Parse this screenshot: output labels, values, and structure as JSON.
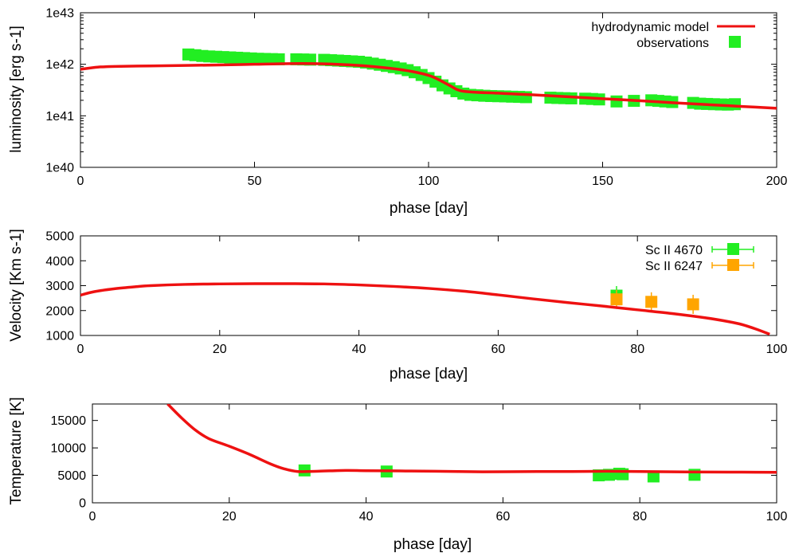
{
  "chart_data": [
    {
      "type": "line",
      "xlabel": "phase [day]",
      "ylabel": "luminosity [erg s-1]",
      "xlim": [
        0,
        200
      ],
      "ylim": [
        1e+40,
        1e+43
      ],
      "y_scale": "log",
      "xticks": [
        0,
        50,
        100,
        150,
        200
      ],
      "xtick_labels": [
        "0",
        "50",
        "100",
        "150",
        "200"
      ],
      "yticks": [
        1e+40,
        1e+41,
        1e+42,
        1e+43
      ],
      "ytick_labels": [
        "1e40",
        "1e41",
        "1e42",
        "1e43"
      ],
      "legend": "top-right",
      "series": [
        {
          "name": "hydrodynamic model",
          "style": "line",
          "color": "#ee1111",
          "x": [
            0,
            5,
            10,
            20,
            30,
            40,
            50,
            60,
            70,
            80,
            85,
            90,
            95,
            100,
            103,
            106,
            110,
            120,
            130,
            140,
            150,
            160,
            170,
            180,
            190,
            200
          ],
          "y": [
            8e+41,
            8.8e+41,
            9.1e+41,
            9.3e+41,
            9.5e+41,
            9.7e+41,
            1e+42,
            1.03e+42,
            1.02e+42,
            9.5e+41,
            8.9e+41,
            8.2e+41,
            7.3e+41,
            6.1e+41,
            5e+41,
            3.9e+41,
            3e+41,
            2.75e+41,
            2.55e+41,
            2.35e+41,
            2.15e+41,
            1.97e+41,
            1.8e+41,
            1.65e+41,
            1.52e+41,
            1.4e+41
          ]
        },
        {
          "name": "observations",
          "style": "marker",
          "color": "#22ee22",
          "x": [
            31,
            33,
            35,
            37,
            39,
            41,
            43,
            45,
            47,
            49,
            51,
            53,
            55,
            57,
            62,
            64,
            66,
            70,
            72,
            74,
            76,
            78,
            80,
            82,
            84,
            86,
            88,
            90,
            92,
            94,
            96,
            98,
            100,
            102,
            104,
            106,
            108,
            110,
            112,
            114,
            116,
            118,
            120,
            122,
            124,
            126,
            128,
            135,
            137,
            139,
            141,
            145,
            147,
            149,
            154,
            159,
            164,
            166,
            168,
            170,
            176,
            178,
            180,
            182,
            184,
            186,
            188
          ],
          "y": [
            1.55e+42,
            1.5e+42,
            1.45e+42,
            1.42e+42,
            1.4e+42,
            1.38e+42,
            1.36e+42,
            1.34e+42,
            1.32e+42,
            1.3e+42,
            1.28e+42,
            1.27e+42,
            1.26e+42,
            1.25e+42,
            1.25e+42,
            1.24e+42,
            1.23e+42,
            1.22e+42,
            1.2e+42,
            1.18e+42,
            1.16e+42,
            1.14e+42,
            1.12e+42,
            1.08e+42,
            1.03e+42,
            9.8e+41,
            9.3e+41,
            8.8e+41,
            8.3e+41,
            7.7e+41,
            7e+41,
            6.2e+41,
            5.4e+41,
            4.6e+41,
            3.9e+41,
            3.4e+41,
            3e+41,
            2.7e+41,
            2.55e+41,
            2.5e+41,
            2.45e+41,
            2.42e+41,
            2.4e+41,
            2.38e+41,
            2.35e+41,
            2.33e+41,
            2.3e+41,
            2.25e+41,
            2.22e+41,
            2.2e+41,
            2.18e+41,
            2.15e+41,
            2.12e+41,
            2.08e+41,
            1.9e+41,
            1.95e+41,
            2e+41,
            1.95e+41,
            1.9e+41,
            1.85e+41,
            1.78e+41,
            1.72e+41,
            1.7e+41,
            1.68e+41,
            1.66e+41,
            1.65e+41,
            1.68e+41
          ]
        }
      ]
    },
    {
      "type": "line",
      "xlabel": "phase [day]",
      "ylabel": "Velocity [Km s-1]",
      "xlim": [
        0,
        100
      ],
      "ylim": [
        1000,
        5000
      ],
      "xticks": [
        0,
        20,
        40,
        60,
        80,
        100
      ],
      "xtick_labels": [
        "0",
        "20",
        "40",
        "60",
        "80",
        "100"
      ],
      "yticks": [
        1000,
        2000,
        3000,
        4000,
        5000
      ],
      "ytick_labels": [
        "1000",
        "2000",
        "3000",
        "4000",
        "5000"
      ],
      "legend": "top-right",
      "series": [
        {
          "name": "",
          "style": "line",
          "color": "#ee1111",
          "x": [
            0,
            2,
            5,
            8,
            10,
            15,
            20,
            25,
            30,
            35,
            40,
            45,
            50,
            55,
            60,
            65,
            70,
            75,
            80,
            85,
            90,
            93,
            95,
            97,
            99
          ],
          "y": [
            2620,
            2760,
            2880,
            2960,
            3000,
            3050,
            3070,
            3080,
            3080,
            3070,
            3030,
            2970,
            2890,
            2780,
            2630,
            2470,
            2320,
            2180,
            2030,
            1880,
            1700,
            1560,
            1440,
            1260,
            1050
          ]
        },
        {
          "name": "Sc II 4670",
          "style": "marker-errorbar",
          "color": "#22ee22",
          "x": [
            77
          ],
          "y": [
            2600
          ]
        },
        {
          "name": "Sc II 6247",
          "style": "marker-errorbar",
          "color": "#ffa500",
          "x": [
            77,
            82,
            88
          ],
          "y": [
            2450,
            2350,
            2250
          ]
        }
      ]
    },
    {
      "type": "line",
      "xlabel": "phase [day]",
      "ylabel": "Temperature [K]",
      "xlim": [
        0,
        100
      ],
      "ylim": [
        0,
        18000
      ],
      "xticks": [
        0,
        20,
        40,
        60,
        80,
        100
      ],
      "xtick_labels": [
        "0",
        "20",
        "40",
        "60",
        "80",
        "100"
      ],
      "yticks": [
        0,
        5000,
        10000,
        15000
      ],
      "ytick_labels": [
        "0",
        "5000",
        "10000",
        "15000"
      ],
      "series": [
        {
          "name": "",
          "style": "line",
          "color": "#ee1111",
          "x": [
            11,
            13,
            15,
            17,
            20,
            23,
            26,
            28,
            30,
            33,
            37,
            40,
            45,
            50,
            57,
            65,
            70,
            75,
            80,
            85,
            90,
            95,
            100
          ],
          "y": [
            18000,
            15500,
            13300,
            11700,
            10300,
            8800,
            7100,
            6200,
            5700,
            5750,
            5900,
            5850,
            5800,
            5750,
            5650,
            5700,
            5700,
            5750,
            5700,
            5650,
            5600,
            5580,
            5550
          ]
        },
        {
          "name": "",
          "style": "marker",
          "color": "#22ee22",
          "x": [
            31,
            43,
            74,
            75.5,
            77,
            77.5,
            82,
            88
          ],
          "y": [
            5900,
            5700,
            5000,
            5100,
            5300,
            5200,
            4800,
            5100
          ]
        }
      ]
    }
  ]
}
